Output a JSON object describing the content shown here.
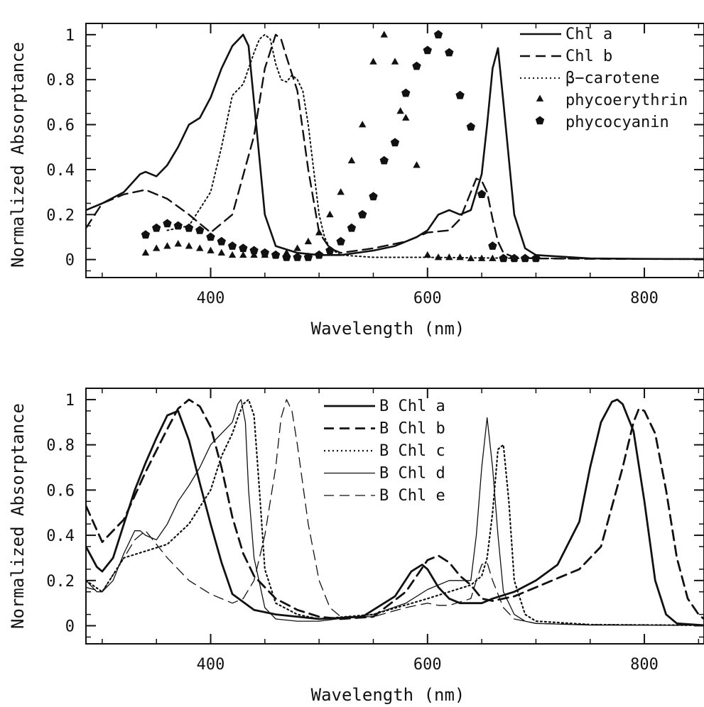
{
  "chart_data": [
    {
      "type": "line",
      "xlabel": "Wavelength (nm)",
      "ylabel": "Normalized Absorptance",
      "xlim": [
        285,
        855
      ],
      "ylim": [
        -0.08,
        1.05
      ],
      "x_ticks": [
        400,
        600,
        800
      ],
      "y_ticks": [
        0,
        0.2,
        0.4,
        0.6,
        0.8,
        1
      ],
      "x_tick_labels": [
        "400",
        "600",
        "800"
      ],
      "y_tick_labels": [
        "0",
        "0.2",
        "0.4",
        "0.6",
        "0.8",
        "1"
      ],
      "legend_position": "top-right",
      "series": [
        {
          "name": "Chl a",
          "style": "solid",
          "width": 2.6,
          "x": [
            285,
            300,
            320,
            335,
            340,
            350,
            360,
            370,
            380,
            390,
            400,
            410,
            420,
            430,
            435,
            440,
            445,
            450,
            460,
            480,
            500,
            520,
            550,
            570,
            590,
            600,
            610,
            620,
            630,
            640,
            650,
            655,
            660,
            665,
            670,
            680,
            690,
            700,
            750,
            800,
            855
          ],
          "y": [
            0.22,
            0.25,
            0.3,
            0.38,
            0.39,
            0.37,
            0.42,
            0.5,
            0.6,
            0.63,
            0.72,
            0.85,
            0.95,
            1.0,
            0.95,
            0.7,
            0.45,
            0.2,
            0.06,
            0.03,
            0.02,
            0.02,
            0.04,
            0.06,
            0.1,
            0.13,
            0.2,
            0.22,
            0.2,
            0.22,
            0.38,
            0.6,
            0.85,
            0.94,
            0.7,
            0.2,
            0.05,
            0.02,
            0.005,
            0.003,
            0.002
          ]
        },
        {
          "name": "Chl b",
          "style": "dashed",
          "width": 2.4,
          "x": [
            285,
            300,
            320,
            340,
            360,
            380,
            400,
            420,
            440,
            450,
            460,
            465,
            470,
            480,
            490,
            500,
            510,
            520,
            550,
            580,
            600,
            620,
            630,
            640,
            645,
            650,
            655,
            660,
            665,
            670,
            680,
            700,
            750,
            855
          ],
          "y": [
            0.14,
            0.25,
            0.29,
            0.31,
            0.27,
            0.2,
            0.12,
            0.2,
            0.55,
            0.85,
            1.0,
            0.98,
            0.9,
            0.75,
            0.4,
            0.12,
            0.05,
            0.03,
            0.05,
            0.08,
            0.12,
            0.13,
            0.18,
            0.3,
            0.36,
            0.35,
            0.3,
            0.18,
            0.08,
            0.03,
            0.01,
            0.005,
            0.003,
            0.002
          ]
        },
        {
          "name": "β−carotene",
          "style": "dotted",
          "width": 2.0,
          "x": [
            360,
            380,
            400,
            410,
            420,
            430,
            440,
            445,
            450,
            455,
            460,
            465,
            470,
            475,
            480,
            485,
            490,
            495,
            500,
            505,
            510,
            520,
            550,
            600,
            700,
            855
          ],
          "y": [
            0.13,
            0.15,
            0.3,
            0.5,
            0.73,
            0.78,
            0.92,
            0.98,
            1.0,
            0.98,
            0.87,
            0.8,
            0.79,
            0.82,
            0.8,
            0.75,
            0.6,
            0.4,
            0.2,
            0.1,
            0.05,
            0.02,
            0.01,
            0.01,
            0.005,
            0.003
          ]
        }
      ],
      "markers": [
        {
          "name": "phycoerythrin",
          "shape": "triangle",
          "x": [
            340,
            350,
            360,
            370,
            380,
            390,
            400,
            410,
            420,
            430,
            440,
            450,
            460,
            470,
            480,
            490,
            500,
            510,
            520,
            530,
            540,
            550,
            560,
            570,
            575,
            580,
            590,
            600,
            610,
            620,
            630,
            640,
            650,
            660,
            670,
            680,
            690,
            700
          ],
          "y": [
            0.03,
            0.05,
            0.06,
            0.07,
            0.06,
            0.05,
            0.04,
            0.03,
            0.02,
            0.02,
            0.02,
            0.02,
            0.02,
            0.03,
            0.05,
            0.08,
            0.12,
            0.2,
            0.3,
            0.44,
            0.6,
            0.88,
            1.0,
            0.88,
            0.66,
            0.63,
            0.42,
            0.02,
            0.01,
            0.01,
            0.01,
            0.005,
            0.005,
            0.005,
            0.005,
            0.005,
            0.005,
            0.005
          ]
        },
        {
          "name": "phycocyanin",
          "shape": "pentagon",
          "x": [
            340,
            350,
            360,
            370,
            380,
            390,
            400,
            410,
            420,
            430,
            440,
            450,
            460,
            470,
            480,
            490,
            500,
            510,
            520,
            530,
            540,
            550,
            560,
            570,
            580,
            590,
            600,
            610,
            620,
            630,
            640,
            650,
            660,
            670,
            680,
            690,
            700
          ],
          "y": [
            0.11,
            0.14,
            0.16,
            0.15,
            0.14,
            0.13,
            0.1,
            0.08,
            0.06,
            0.05,
            0.04,
            0.03,
            0.02,
            0.01,
            0.01,
            0.01,
            0.02,
            0.04,
            0.08,
            0.14,
            0.2,
            0.28,
            0.44,
            0.52,
            0.74,
            0.86,
            0.93,
            1.0,
            0.92,
            0.73,
            0.59,
            0.29,
            0.06,
            0.005,
            0.005,
            0.005,
            0.005
          ]
        }
      ]
    },
    {
      "type": "line",
      "xlabel": "Wavelength (nm)",
      "ylabel": "Normalized Absorptance",
      "xlim": [
        285,
        855
      ],
      "ylim": [
        -0.08,
        1.05
      ],
      "x_ticks": [
        400,
        600,
        800
      ],
      "y_ticks": [
        0,
        0.2,
        0.4,
        0.6,
        0.8,
        1
      ],
      "x_tick_labels": [
        "400",
        "600",
        "800"
      ],
      "y_tick_labels": [
        "0",
        "0.2",
        "0.4",
        "0.6",
        "0.8",
        "1"
      ],
      "legend_position": "top-center",
      "series": [
        {
          "name": "B Chl a",
          "style": "solid",
          "width": 2.8,
          "x": [
            285,
            295,
            300,
            310,
            320,
            330,
            340,
            350,
            360,
            370,
            380,
            390,
            400,
            410,
            420,
            440,
            460,
            500,
            540,
            570,
            585,
            595,
            600,
            610,
            620,
            630,
            640,
            650,
            660,
            680,
            700,
            720,
            740,
            750,
            760,
            770,
            775,
            780,
            790,
            800,
            810,
            820,
            830,
            855
          ],
          "y": [
            0.35,
            0.26,
            0.24,
            0.3,
            0.45,
            0.6,
            0.72,
            0.83,
            0.93,
            0.95,
            0.82,
            0.63,
            0.45,
            0.28,
            0.14,
            0.07,
            0.05,
            0.03,
            0.04,
            0.13,
            0.24,
            0.27,
            0.25,
            0.17,
            0.12,
            0.1,
            0.1,
            0.1,
            0.12,
            0.15,
            0.2,
            0.27,
            0.46,
            0.7,
            0.9,
            0.99,
            1.0,
            0.98,
            0.86,
            0.55,
            0.2,
            0.05,
            0.01,
            0.002
          ]
        },
        {
          "name": "B Chl b",
          "style": "dashed",
          "width": 2.8,
          "x": [
            285,
            300,
            320,
            340,
            360,
            370,
            380,
            390,
            400,
            410,
            420,
            430,
            440,
            460,
            480,
            500,
            520,
            550,
            580,
            600,
            610,
            620,
            630,
            640,
            650,
            660,
            680,
            700,
            720,
            740,
            760,
            780,
            790,
            795,
            800,
            810,
            820,
            830,
            840,
            850,
            855
          ],
          "y": [
            0.53,
            0.37,
            0.47,
            0.68,
            0.87,
            0.96,
            1.0,
            0.97,
            0.88,
            0.7,
            0.48,
            0.32,
            0.22,
            0.12,
            0.07,
            0.04,
            0.03,
            0.04,
            0.15,
            0.29,
            0.31,
            0.28,
            0.22,
            0.18,
            0.12,
            0.11,
            0.13,
            0.17,
            0.21,
            0.25,
            0.35,
            0.7,
            0.9,
            0.96,
            0.95,
            0.85,
            0.6,
            0.3,
            0.12,
            0.05,
            0.03
          ]
        },
        {
          "name": "B Chl c",
          "style": "dotted",
          "width": 2.2,
          "x": [
            285,
            300,
            320,
            340,
            360,
            380,
            400,
            410,
            420,
            425,
            430,
            435,
            440,
            445,
            450,
            460,
            480,
            500,
            550,
            600,
            620,
            640,
            650,
            655,
            660,
            665,
            670,
            675,
            680,
            690,
            700,
            750,
            855
          ],
          "y": [
            0.2,
            0.15,
            0.3,
            0.33,
            0.36,
            0.45,
            0.6,
            0.75,
            0.85,
            0.92,
            0.98,
            1.0,
            0.93,
            0.6,
            0.25,
            0.1,
            0.05,
            0.03,
            0.05,
            0.12,
            0.15,
            0.18,
            0.22,
            0.3,
            0.5,
            0.78,
            0.8,
            0.55,
            0.2,
            0.05,
            0.02,
            0.005,
            0.002
          ]
        },
        {
          "name": "B Chl d",
          "style": "solid",
          "width": 1.3,
          "x": [
            285,
            295,
            300,
            310,
            320,
            330,
            335,
            340,
            350,
            360,
            370,
            380,
            390,
            400,
            410,
            420,
            425,
            428,
            432,
            435,
            440,
            450,
            460,
            480,
            500,
            550,
            580,
            600,
            620,
            640,
            645,
            650,
            655,
            660,
            665,
            670,
            680,
            690,
            700,
            750,
            855
          ],
          "y": [
            0.2,
            0.15,
            0.15,
            0.2,
            0.32,
            0.42,
            0.42,
            0.4,
            0.38,
            0.45,
            0.55,
            0.62,
            0.7,
            0.8,
            0.85,
            0.9,
            0.98,
            1.0,
            0.9,
            0.6,
            0.3,
            0.08,
            0.03,
            0.02,
            0.02,
            0.05,
            0.1,
            0.16,
            0.2,
            0.2,
            0.4,
            0.7,
            0.92,
            0.7,
            0.4,
            0.15,
            0.05,
            0.02,
            0.01,
            0.003,
            0.002
          ]
        },
        {
          "name": "B Chl e",
          "style": "dashed",
          "width": 1.3,
          "x": [
            285,
            300,
            320,
            330,
            340,
            350,
            360,
            380,
            400,
            420,
            430,
            440,
            450,
            460,
            465,
            470,
            475,
            480,
            490,
            500,
            510,
            520,
            550,
            580,
            600,
            610,
            620,
            640,
            645,
            650,
            655,
            660,
            670,
            680,
            700,
            750,
            855
          ],
          "y": [
            0.17,
            0.15,
            0.3,
            0.38,
            0.42,
            0.36,
            0.3,
            0.2,
            0.14,
            0.1,
            0.12,
            0.2,
            0.4,
            0.7,
            0.92,
            1.0,
            0.95,
            0.8,
            0.45,
            0.2,
            0.08,
            0.04,
            0.04,
            0.08,
            0.1,
            0.09,
            0.09,
            0.12,
            0.2,
            0.27,
            0.28,
            0.2,
            0.08,
            0.03,
            0.01,
            0.005,
            0.002
          ]
        }
      ]
    }
  ]
}
